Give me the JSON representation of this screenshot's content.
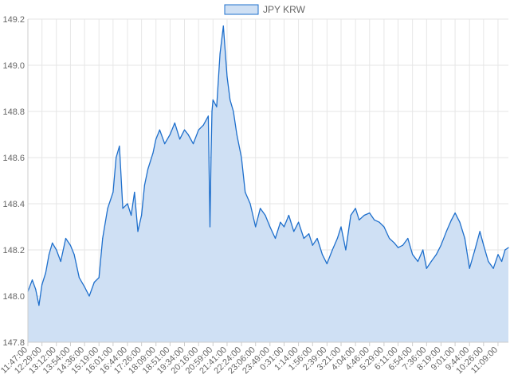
{
  "chart_data": {
    "type": "area",
    "title": "",
    "xlabel": "",
    "ylabel": "",
    "legend": {
      "position": "top",
      "label": "JPY KRW"
    },
    "grid": true,
    "ylim": [
      147.8,
      149.2
    ],
    "y_ticks": [
      "149.2",
      "149.0",
      "148.8",
      "148.6",
      "148.4",
      "148.2",
      "148.0",
      "147.8"
    ],
    "x_ticks": [
      "11:47:00",
      "12:29:00",
      "13:12:00",
      "13:54:00",
      "14:36:00",
      "15:19:00",
      "16:01:00",
      "16:44:00",
      "17:26:00",
      "18:09:00",
      "18:51:00",
      "19:34:00",
      "20:16:00",
      "20:59:00",
      "21:41:00",
      "22:24:00",
      "23:06:00",
      "23:49:00",
      "0:31:00",
      "1:14:00",
      "1:56:00",
      "2:39:00",
      "3:21:00",
      "4:04:00",
      "4:46:00",
      "5:29:00",
      "6:11:00",
      "6:54:00",
      "7:36:00",
      "8:19:00",
      "9:01:00",
      "9:44:00",
      "10:26:00",
      "11:09:00"
    ],
    "series": [
      {
        "name": "JPY KRW",
        "line_color": "#1e6fcc",
        "fill_color": "#cfe0f4",
        "x": [
          "11:47:00",
          "12:00:00",
          "12:10:00",
          "12:20:00",
          "12:29:00",
          "12:40:00",
          "12:50:00",
          "13:00:00",
          "13:12:00",
          "13:25:00",
          "13:40:00",
          "13:54:00",
          "14:05:00",
          "14:20:00",
          "14:36:00",
          "14:50:00",
          "15:05:00",
          "15:19:00",
          "15:30:00",
          "15:45:00",
          "16:01:00",
          "16:10:00",
          "16:20:00",
          "16:30:00",
          "16:44:00",
          "16:55:00",
          "17:05:00",
          "17:15:00",
          "17:26:00",
          "17:35:00",
          "17:45:00",
          "18:00:00",
          "18:09:00",
          "18:20:00",
          "18:35:00",
          "18:51:00",
          "19:05:00",
          "19:20:00",
          "19:34:00",
          "19:45:00",
          "20:00:00",
          "20:16:00",
          "20:30:00",
          "20:45:00",
          "20:50:00",
          "20:53:00",
          "20:56:00",
          "20:59:00",
          "21:10:00",
          "21:20:00",
          "21:30:00",
          "21:41:00",
          "21:50:00",
          "22:00:00",
          "22:10:00",
          "22:24:00",
          "22:35:00",
          "22:50:00",
          "23:06:00",
          "23:20:00",
          "23:35:00",
          "23:49:00",
          "0:05:00",
          "0:20:00",
          "0:31:00",
          "0:45:00",
          "1:00:00",
          "1:14:00",
          "1:30:00",
          "1:45:00",
          "1:56:00",
          "2:10:00",
          "2:25:00",
          "2:39:00",
          "2:55:00",
          "3:10:00",
          "3:21:00",
          "3:35:00",
          "3:50:00",
          "4:04:00",
          "4:15:00",
          "4:30:00",
          "4:46:00",
          "5:00:00",
          "5:15:00",
          "5:29:00",
          "5:45:00",
          "6:00:00",
          "6:11:00",
          "6:25:00",
          "6:40:00",
          "6:54:00",
          "7:10:00",
          "7:25:00",
          "7:36:00",
          "7:50:00",
          "8:05:00",
          "8:19:00",
          "8:35:00",
          "8:50:00",
          "9:01:00",
          "9:15:00",
          "9:30:00",
          "9:44:00",
          "10:00:00",
          "10:15:00",
          "10:26:00",
          "10:40:00",
          "10:55:00",
          "11:09:00",
          "11:20:00",
          "11:30:00",
          "11:40:00"
        ],
        "y": [
          148.02,
          148.07,
          148.03,
          147.96,
          148.05,
          148.1,
          148.18,
          148.23,
          148.2,
          148.15,
          148.25,
          148.22,
          148.18,
          148.08,
          148.04,
          148.0,
          148.06,
          148.08,
          148.25,
          148.38,
          148.45,
          148.6,
          148.65,
          148.38,
          148.4,
          148.35,
          148.45,
          148.28,
          148.35,
          148.48,
          148.55,
          148.62,
          148.68,
          148.72,
          148.66,
          148.7,
          148.75,
          148.68,
          148.72,
          148.7,
          148.66,
          148.72,
          148.74,
          148.78,
          148.3,
          148.6,
          148.8,
          148.85,
          148.82,
          149.05,
          149.17,
          148.95,
          148.85,
          148.8,
          148.7,
          148.6,
          148.45,
          148.4,
          148.3,
          148.38,
          148.35,
          148.3,
          148.25,
          148.32,
          148.3,
          148.35,
          148.28,
          148.32,
          148.25,
          148.27,
          148.22,
          148.25,
          148.18,
          148.14,
          148.2,
          148.25,
          148.3,
          148.2,
          148.35,
          148.38,
          148.33,
          148.35,
          148.36,
          148.33,
          148.32,
          148.3,
          148.25,
          148.23,
          148.21,
          148.22,
          148.25,
          148.18,
          148.15,
          148.2,
          148.12,
          148.15,
          148.18,
          148.22,
          148.28,
          148.33,
          148.36,
          148.32,
          148.25,
          148.12,
          148.2,
          148.28,
          148.22,
          148.15,
          148.12,
          148.18,
          148.15,
          148.2,
          148.21
        ]
      }
    ]
  }
}
